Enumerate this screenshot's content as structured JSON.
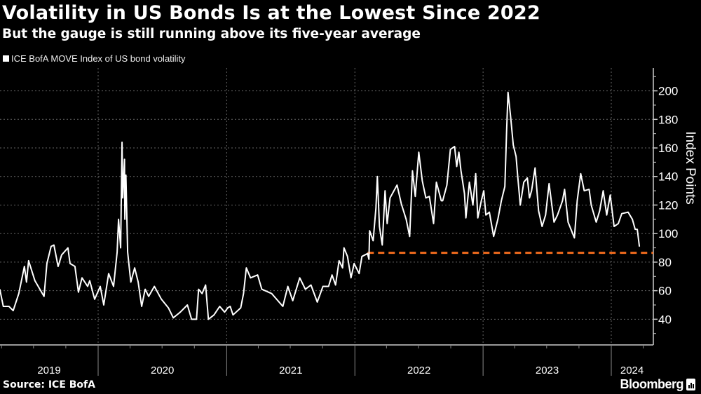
{
  "header": {
    "title": "Volatility in US Bonds Is at the Lowest Since 2022",
    "subtitle": "But the gauge is still running above its five-year average"
  },
  "footer": {
    "source": "Source: ICE BofA",
    "brand": "Bloomberg"
  },
  "chart_data": {
    "type": "line",
    "title": "Volatility in US Bonds Is at the Lowest Since 2022",
    "subtitle": "But the gauge is still running above its five-year average",
    "ylabel": "Index Points",
    "xlabel": "",
    "y_axis_side": "right",
    "ylim": [
      22,
      216
    ],
    "xlim": [
      "2019-03-27",
      "2024-04-28"
    ],
    "yticks": [
      40,
      60,
      80,
      100,
      120,
      140,
      160,
      180,
      200
    ],
    "xtick_labels": [
      "2019",
      "2020",
      "2021",
      "2022",
      "2023",
      "2024"
    ],
    "grid": true,
    "legend_position": "top-left",
    "colors": {
      "series": "#ffffff",
      "reference_line": "#f26b1d",
      "grid": "#666666"
    },
    "reference_line": {
      "value": 86.5,
      "start": "2022-02-06",
      "style": "dashed"
    },
    "series": [
      {
        "name": "ICE BofA MOVE Index of US bond volatility",
        "points": [
          [
            "2019-03-27",
            61
          ],
          [
            "2019-04-06",
            49
          ],
          [
            "2019-04-22",
            49
          ],
          [
            "2019-05-04",
            46
          ],
          [
            "2019-05-20",
            58
          ],
          [
            "2019-06-05",
            77
          ],
          [
            "2019-06-11",
            66
          ],
          [
            "2019-06-17",
            81
          ],
          [
            "2019-07-05",
            67
          ],
          [
            "2019-07-31",
            56
          ],
          [
            "2019-08-08",
            79
          ],
          [
            "2019-08-20",
            91
          ],
          [
            "2019-08-28",
            92
          ],
          [
            "2019-09-09",
            77
          ],
          [
            "2019-09-19",
            85
          ],
          [
            "2019-10-07",
            90
          ],
          [
            "2019-10-13",
            79
          ],
          [
            "2019-10-27",
            77
          ],
          [
            "2019-11-06",
            59
          ],
          [
            "2019-11-16",
            69
          ],
          [
            "2019-12-02",
            63
          ],
          [
            "2019-12-08",
            67
          ],
          [
            "2019-12-22",
            54
          ],
          [
            "2020-01-07",
            63
          ],
          [
            "2020-01-17",
            50
          ],
          [
            "2020-01-31",
            72
          ],
          [
            "2020-02-14",
            63
          ],
          [
            "2020-02-24",
            87
          ],
          [
            "2020-02-28",
            110
          ],
          [
            "2020-03-05",
            90
          ],
          [
            "2020-03-09",
            164
          ],
          [
            "2020-03-11",
            125
          ],
          [
            "2020-03-16",
            152
          ],
          [
            "2020-03-17",
            110
          ],
          [
            "2020-03-20",
            141
          ],
          [
            "2020-03-25",
            87
          ],
          [
            "2020-04-03",
            66
          ],
          [
            "2020-04-14",
            76
          ],
          [
            "2020-04-24",
            66
          ],
          [
            "2020-05-04",
            49
          ],
          [
            "2020-05-14",
            61
          ],
          [
            "2020-05-24",
            56
          ],
          [
            "2020-06-09",
            63
          ],
          [
            "2020-06-29",
            54
          ],
          [
            "2020-07-19",
            48
          ],
          [
            "2020-08-02",
            41
          ],
          [
            "2020-08-22",
            45
          ],
          [
            "2020-09-11",
            50
          ],
          [
            "2020-09-23",
            40
          ],
          [
            "2020-10-07",
            40
          ],
          [
            "2020-10-13",
            61
          ],
          [
            "2020-10-23",
            58
          ],
          [
            "2020-11-02",
            64
          ],
          [
            "2020-11-10",
            40
          ],
          [
            "2020-11-26",
            43
          ],
          [
            "2020-12-12",
            49
          ],
          [
            "2020-12-26",
            45
          ],
          [
            "2021-01-04",
            48
          ],
          [
            "2021-01-11",
            49
          ],
          [
            "2021-01-19",
            43
          ],
          [
            "2021-02-10",
            48
          ],
          [
            "2021-02-18",
            58
          ],
          [
            "2021-02-26",
            76
          ],
          [
            "2021-03-10",
            69
          ],
          [
            "2021-03-30",
            71
          ],
          [
            "2021-04-11",
            61
          ],
          [
            "2021-05-09",
            58
          ],
          [
            "2021-06-10",
            49
          ],
          [
            "2021-06-24",
            63
          ],
          [
            "2021-07-08",
            53
          ],
          [
            "2021-07-28",
            69
          ],
          [
            "2021-08-13",
            61
          ],
          [
            "2021-08-29",
            64
          ],
          [
            "2021-09-16",
            52
          ],
          [
            "2021-10-02",
            63
          ],
          [
            "2021-10-18",
            63
          ],
          [
            "2021-10-28",
            71
          ],
          [
            "2021-11-07",
            64
          ],
          [
            "2021-11-17",
            81
          ],
          [
            "2021-11-27",
            76
          ],
          [
            "2021-12-01",
            90
          ],
          [
            "2021-12-11",
            84
          ],
          [
            "2021-12-21",
            69
          ],
          [
            "2021-12-30",
            79
          ],
          [
            "2022-01-13",
            72
          ],
          [
            "2022-01-21",
            84
          ],
          [
            "2022-02-06",
            86
          ],
          [
            "2022-02-10",
            82
          ],
          [
            "2022-02-12",
            102
          ],
          [
            "2022-02-22",
            95
          ],
          [
            "2022-03-02",
            118
          ],
          [
            "2022-03-06",
            140
          ],
          [
            "2022-03-12",
            105
          ],
          [
            "2022-03-20",
            92
          ],
          [
            "2022-03-28",
            130
          ],
          [
            "2022-04-03",
            107
          ],
          [
            "2022-04-11",
            125
          ],
          [
            "2022-05-01",
            134
          ],
          [
            "2022-05-13",
            121
          ],
          [
            "2022-05-27",
            110
          ],
          [
            "2022-06-06",
            98
          ],
          [
            "2022-06-14",
            144
          ],
          [
            "2022-06-22",
            126
          ],
          [
            "2022-07-02",
            157
          ],
          [
            "2022-07-12",
            137
          ],
          [
            "2022-07-22",
            125
          ],
          [
            "2022-08-01",
            126
          ],
          [
            "2022-08-13",
            107
          ],
          [
            "2022-08-21",
            136
          ],
          [
            "2022-09-04",
            123
          ],
          [
            "2022-09-08",
            123
          ],
          [
            "2022-09-20",
            134
          ],
          [
            "2022-09-30",
            159
          ],
          [
            "2022-10-12",
            161
          ],
          [
            "2022-10-18",
            147
          ],
          [
            "2022-10-24",
            157
          ],
          [
            "2022-10-30",
            144
          ],
          [
            "2022-11-09",
            128
          ],
          [
            "2022-11-13",
            111
          ],
          [
            "2022-11-23",
            136
          ],
          [
            "2022-12-03",
            120
          ],
          [
            "2022-12-11",
            142
          ],
          [
            "2022-12-17",
            111
          ],
          [
            "2022-12-27",
            123
          ],
          [
            "2023-01-03",
            130
          ],
          [
            "2023-01-09",
            113
          ],
          [
            "2023-01-19",
            115
          ],
          [
            "2023-01-31",
            98
          ],
          [
            "2023-02-12",
            110
          ],
          [
            "2023-02-22",
            123
          ],
          [
            "2023-03-04",
            133
          ],
          [
            "2023-03-09",
            172
          ],
          [
            "2023-03-13",
            199
          ],
          [
            "2023-03-20",
            183
          ],
          [
            "2023-03-28",
            162
          ],
          [
            "2023-04-05",
            154
          ],
          [
            "2023-04-09",
            142
          ],
          [
            "2023-04-17",
            120
          ],
          [
            "2023-04-27",
            136
          ],
          [
            "2023-05-07",
            139
          ],
          [
            "2023-05-13",
            125
          ],
          [
            "2023-05-19",
            130
          ],
          [
            "2023-05-29",
            146
          ],
          [
            "2023-06-08",
            116
          ],
          [
            "2023-06-18",
            105
          ],
          [
            "2023-06-28",
            113
          ],
          [
            "2023-07-08",
            135
          ],
          [
            "2023-07-22",
            108
          ],
          [
            "2023-08-01",
            113
          ],
          [
            "2023-08-15",
            123
          ],
          [
            "2023-08-21",
            131
          ],
          [
            "2023-08-31",
            108
          ],
          [
            "2023-09-18",
            97
          ],
          [
            "2023-09-26",
            123
          ],
          [
            "2023-10-06",
            142
          ],
          [
            "2023-10-16",
            130
          ],
          [
            "2023-10-30",
            131
          ],
          [
            "2023-11-05",
            120
          ],
          [
            "2023-11-19",
            108
          ],
          [
            "2023-11-29",
            116
          ],
          [
            "2023-12-09",
            130
          ],
          [
            "2023-12-19",
            113
          ],
          [
            "2023-12-29",
            127
          ],
          [
            "2024-01-09",
            105
          ],
          [
            "2024-01-21",
            107
          ],
          [
            "2024-01-31",
            114
          ],
          [
            "2024-02-18",
            115
          ],
          [
            "2024-03-01",
            110
          ],
          [
            "2024-03-09",
            103
          ],
          [
            "2024-03-15",
            103
          ],
          [
            "2024-03-21",
            91
          ]
        ]
      }
    ]
  }
}
